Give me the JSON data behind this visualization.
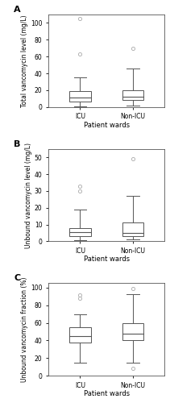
{
  "panels": [
    {
      "label": "A",
      "ylabel": "Total vancomycin level (mg/L)",
      "xlabel": "Patient wards",
      "ylim": [
        0,
        110
      ],
      "yticks": [
        0,
        20,
        40,
        60,
        80,
        100
      ],
      "boxes": [
        {
          "group": "ICU",
          "p25": 6,
          "median": 11,
          "p75": 19,
          "whisker_low": 1,
          "whisker_high": 35,
          "outliers": [
            63,
            105
          ]
        },
        {
          "group": "Non-ICU",
          "p25": 8,
          "median": 12,
          "p75": 20,
          "whisker_low": 2,
          "whisker_high": 46,
          "outliers": [
            70
          ]
        }
      ]
    },
    {
      "label": "B",
      "ylabel": "Unbound vancomycin level (mg/L)",
      "xlabel": "Patient wards",
      "ylim": [
        0,
        55
      ],
      "yticks": [
        0,
        10,
        20,
        30,
        40,
        50
      ],
      "boxes": [
        {
          "group": "ICU",
          "p25": 3,
          "median": 5.5,
          "p75": 8,
          "whisker_low": 0.5,
          "whisker_high": 19,
          "outliers": [
            30,
            33
          ]
        },
        {
          "group": "Non-ICU",
          "p25": 3,
          "median": 5,
          "p75": 11,
          "whisker_low": 1,
          "whisker_high": 27,
          "outliers": [
            49
          ]
        }
      ]
    },
    {
      "label": "C",
      "ylabel": "Unbound vancomycin fraction (%)",
      "xlabel": "Patient wards",
      "ylim": [
        0,
        105
      ],
      "yticks": [
        0,
        20,
        40,
        60,
        80,
        100
      ],
      "boxes": [
        {
          "group": "ICU",
          "p25": 38,
          "median": 45,
          "p75": 55,
          "whisker_low": 15,
          "whisker_high": 70,
          "outliers": [
            88,
            92
          ]
        },
        {
          "group": "Non-ICU",
          "p25": 40,
          "median": 48,
          "p75": 60,
          "whisker_low": 15,
          "whisker_high": 93,
          "outliers": [
            8,
            99
          ]
        }
      ]
    }
  ],
  "box_edge_color": "#555555",
  "median_color": "#555555",
  "whisker_color": "#555555",
  "outlier_color": "#aaaaaa",
  "outlier_size": 3,
  "box_width": 0.4,
  "x_positions": [
    1,
    2
  ],
  "xlim": [
    0.4,
    2.6
  ],
  "fig_width": 2.11,
  "fig_height": 5.0,
  "dpi": 100,
  "tick_fontsize": 5.5,
  "ylabel_fontsize": 5.5,
  "panel_label_fontsize": 8,
  "xlabel_fontsize": 6
}
